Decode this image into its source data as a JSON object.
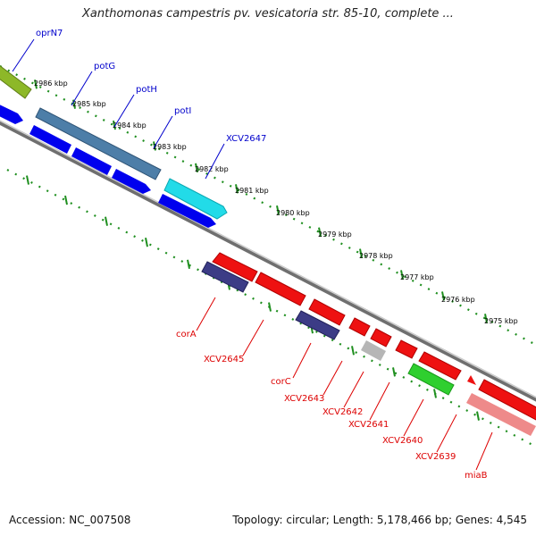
{
  "header": {
    "title": "Xanthomonas campestris pv. vesicatoria str. 85-10, complete ..."
  },
  "footer": {
    "accession": "Accession: NC_007508",
    "summary": "Topology: circular; Length: 5,178,466 bp; Genes: 4,545"
  },
  "colors": {
    "backbone": "#808080",
    "tick": "#1f8f1f",
    "forward_label": "#0000cc",
    "reverse_label": "#dd0000"
  },
  "map": {
    "ticks": [
      "2986 kbp",
      "2985 kbp",
      "2984 kbp",
      "2983 kbp",
      "2982 kbp",
      "2981 kbp",
      "2980 kbp",
      "2979 kbp",
      "2978 kbp",
      "2977 kbp",
      "2976 kbp",
      "2975 kbp"
    ],
    "forward_genes": [
      "oprN7",
      "potG",
      "potH",
      "potI",
      "XCV2647"
    ],
    "reverse_genes": [
      "corA",
      "XCV2645",
      "corC",
      "XCV2643",
      "XCV2642",
      "XCV2641",
      "XCV2640",
      "XCV2639",
      "miaB"
    ]
  }
}
